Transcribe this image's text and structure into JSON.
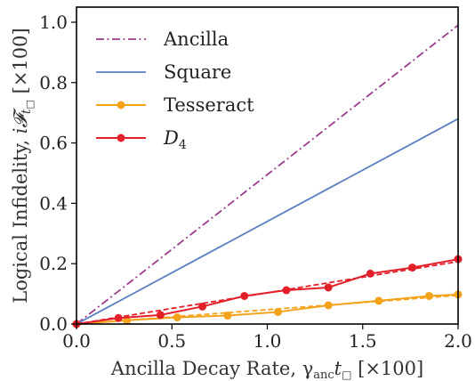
{
  "chart_data": {
    "type": "line",
    "xlabel": "Ancilla Decay Rate, γ",
    "xlabel_sub": "anc",
    "xlabel_t": "t",
    "xlabel_box": "□",
    "xlabel_suffix": " [×100]",
    "ylabel": "Logical Infidelity, ",
    "ylabel_math": "i𝓕",
    "ylabel_t": "t",
    "ylabel_box": "□",
    "ylabel_suffix": " [×100]",
    "xlim": [
      0,
      2.0
    ],
    "ylim": [
      0,
      1.05
    ],
    "xticks": [
      0.0,
      0.5,
      1.0,
      1.5,
      2.0
    ],
    "xtick_labels": [
      "0.0",
      "0.5",
      "1.0",
      "1.5",
      "2.0"
    ],
    "yticks": [
      0.0,
      0.2,
      0.4,
      0.6,
      0.8,
      1.0
    ],
    "ytick_labels": [
      "0.0",
      "0.2",
      "0.4",
      "0.6",
      "0.8",
      "1.0"
    ],
    "legend_position": "top-left",
    "series": [
      {
        "name": "Ancilla",
        "color": "#9b3d8f",
        "style": "dashdot",
        "markers": false,
        "x": [
          0.0,
          2.0
        ],
        "y": [
          0.0,
          0.99
        ]
      },
      {
        "name": "Square",
        "color": "#5b7fc1",
        "style": "solid",
        "markers": false,
        "x": [
          0.0,
          2.0
        ],
        "y": [
          0.0,
          0.68
        ]
      },
      {
        "name": "Tesseract",
        "color": "#f5a21b",
        "style": "solid",
        "markers": true,
        "x": [
          0.0,
          0.264,
          0.528,
          0.792,
          1.056,
          1.32,
          1.584,
          1.848,
          2.0
        ],
        "y": [
          0.0,
          0.012,
          0.022,
          0.028,
          0.04,
          0.062,
          0.077,
          0.093,
          0.098
        ],
        "fit": {
          "style": "dashed",
          "x": [
            0.0,
            2.0
          ],
          "y": [
            0.0,
            0.095
          ]
        }
      },
      {
        "name": "D",
        "name_sub": "4",
        "color": "#e3202a",
        "style": "solid",
        "markers": true,
        "x": [
          0.0,
          0.22,
          0.44,
          0.66,
          0.88,
          1.1,
          1.32,
          1.54,
          1.76,
          2.0
        ],
        "y": [
          0.0,
          0.02,
          0.03,
          0.058,
          0.093,
          0.112,
          0.121,
          0.167,
          0.187,
          0.215
        ],
        "fit": {
          "style": "dashed",
          "x": [
            0.0,
            2.0
          ],
          "y": [
            0.0,
            0.207
          ]
        }
      }
    ]
  }
}
